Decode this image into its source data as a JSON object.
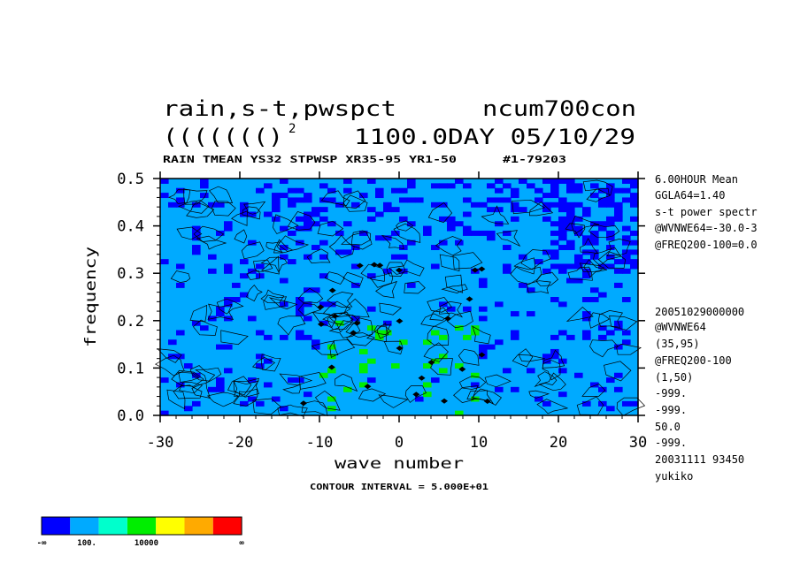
{
  "chart_data": {
    "type": "heatmap",
    "title_line1_left": "rain,s-t,pwspct",
    "title_line1_right": "ncum700con",
    "title_line2_left": "((((((()",
    "title_line2_sup": "2",
    "title_line2_right": "1100.0DAY 05/10/29",
    "subtitle_left": "RAIN TMEAN YS32 STPWSP XR35-95 YR1-50",
    "subtitle_right": "#1-79203",
    "xlabel": "wave number",
    "ylabel": "frequency",
    "xlim": [
      -30,
      30
    ],
    "ylim": [
      0.0,
      0.5
    ],
    "x_ticks": [
      "-30",
      "-20",
      "-10",
      "0",
      "10",
      "20",
      "30"
    ],
    "y_ticks": [
      "0.0",
      "0.1",
      "0.2",
      "0.3",
      "0.4",
      "0.5"
    ],
    "contour_interval": "CONTOUR INTERVAL = 5.000E+01",
    "levels": [
      {
        "label": "-∞",
        "color": "#0000ff"
      },
      {
        "label": "100.",
        "color": "#00aaff"
      },
      {
        "label": "",
        "color": "#00ffcc"
      },
      {
        "label": "10000",
        "color": "#00ee00"
      },
      {
        "label": "",
        "color": "#ffff00"
      },
      {
        "label": "",
        "color": "#ffaa00"
      },
      {
        "label": "∞",
        "color": "#ff0000"
      }
    ],
    "background_color": "#00aaff",
    "low_color": "#0000ff",
    "peak_color": "#00ee00",
    "peak_region": {
      "wave_number": [
        -10,
        10
      ],
      "frequency": [
        0.0,
        0.2
      ]
    }
  },
  "info_top": [
    "6.00HOUR Mean",
    "GGLA64=1.40",
    "s-t power spectr",
    "@WVNWE64=-30.0-3",
    "@FREQ200-100=0.0"
  ],
  "info_bottom": [
    "20051029000000",
    "@WVNWE64",
    "(35,95)",
    "@FREQ200-100",
    "(1,50)",
    "-999.",
    "-999.",
    "50.0",
    "-999.",
    "20031111  93450",
    "yukiko"
  ]
}
